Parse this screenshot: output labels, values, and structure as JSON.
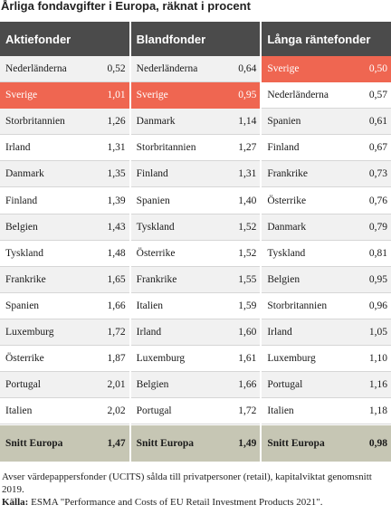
{
  "title": "Årliga fondavgifter i Europa, räknat i procent",
  "columns": [
    {
      "header": "Aktiefonder",
      "rows": [
        {
          "country": "Nederländerna",
          "value": "0,52"
        },
        {
          "country": "Sverige",
          "value": "1,01",
          "highlight": true
        },
        {
          "country": "Storbritannien",
          "value": "1,26"
        },
        {
          "country": "Irland",
          "value": "1,31"
        },
        {
          "country": "Danmark",
          "value": "1,35"
        },
        {
          "country": "Finland",
          "value": "1,39"
        },
        {
          "country": "Belgien",
          "value": "1,43"
        },
        {
          "country": "Tyskland",
          "value": "1,48"
        },
        {
          "country": "Frankrike",
          "value": "1,65"
        },
        {
          "country": "Spanien",
          "value": "1,66"
        },
        {
          "country": "Luxemburg",
          "value": "1,72"
        },
        {
          "country": "Österrike",
          "value": "1,87"
        },
        {
          "country": "Portugal",
          "value": "2,01"
        },
        {
          "country": "Italien",
          "value": "2,02"
        }
      ],
      "total": {
        "label": "Snitt Europa",
        "value": "1,47"
      }
    },
    {
      "header": "Blandfonder",
      "rows": [
        {
          "country": "Nederländerna",
          "value": "0,64"
        },
        {
          "country": "Sverige",
          "value": "0,95",
          "highlight": true
        },
        {
          "country": "Danmark",
          "value": "1,14"
        },
        {
          "country": "Storbritannien",
          "value": "1,27"
        },
        {
          "country": "Finland",
          "value": "1,31"
        },
        {
          "country": "Spanien",
          "value": "1,40"
        },
        {
          "country": "Tyskland",
          "value": "1,52"
        },
        {
          "country": "Österrike",
          "value": "1,52"
        },
        {
          "country": "Frankrike",
          "value": "1,55"
        },
        {
          "country": "Italien",
          "value": "1,59"
        },
        {
          "country": "Irland",
          "value": "1,60"
        },
        {
          "country": "Luxemburg",
          "value": "1,61"
        },
        {
          "country": "Belgien",
          "value": "1,66"
        },
        {
          "country": "Portugal",
          "value": "1,72"
        }
      ],
      "total": {
        "label": "Snitt Europa",
        "value": "1,49"
      }
    },
    {
      "header": "Långa räntefonder",
      "rows": [
        {
          "country": "Sverige",
          "value": "0,50",
          "highlight": true
        },
        {
          "country": "Nederländerna",
          "value": "0,57"
        },
        {
          "country": "Spanien",
          "value": "0,61"
        },
        {
          "country": "Finland",
          "value": "0,67"
        },
        {
          "country": "Frankrike",
          "value": "0,73"
        },
        {
          "country": "Österrike",
          "value": "0,76"
        },
        {
          "country": "Danmark",
          "value": "0,79"
        },
        {
          "country": "Tyskland",
          "value": "0,81"
        },
        {
          "country": "Belgien",
          "value": "0,95"
        },
        {
          "country": "Storbritannien",
          "value": "0,96"
        },
        {
          "country": "Irland",
          "value": "1,05"
        },
        {
          "country": "Luxemburg",
          "value": "1,10"
        },
        {
          "country": "Portugal",
          "value": "1,16"
        },
        {
          "country": "Italien",
          "value": "1,18"
        }
      ],
      "total": {
        "label": "Snitt Europa",
        "value": "0,98"
      }
    }
  ],
  "note": "Avser värdepappersfonder (UCITS) sålda till privatpersoner (retail), kapitalviktat genomsnitt 2019.",
  "source_label": "Källa:",
  "source_text": " ESMA \"Performance and Costs of EU Retail Investment Products 2021\"."
}
